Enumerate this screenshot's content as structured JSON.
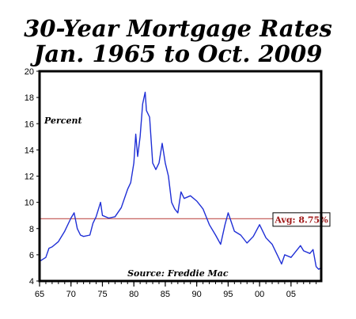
{
  "chart_data": {
    "type": "line",
    "title_line1": "30-Year Mortgage Rates",
    "title_line2": "Jan. 1965 to Oct. 2009",
    "ylabel": "Percent",
    "source": "Source: Freddie Mac",
    "avg_label": "Avg: 8.75%",
    "avg_value": 8.75,
    "ylim": [
      4,
      20
    ],
    "xlim": [
      1965,
      2009.8
    ],
    "y_ticks": [
      4,
      6,
      8,
      10,
      12,
      14,
      16,
      18,
      20
    ],
    "x_ticks": [
      {
        "value": 1965,
        "label": "65"
      },
      {
        "value": 1970,
        "label": "70"
      },
      {
        "value": 1975,
        "label": "75"
      },
      {
        "value": 1980,
        "label": "80"
      },
      {
        "value": 1985,
        "label": "85"
      },
      {
        "value": 1990,
        "label": "90"
      },
      {
        "value": 1995,
        "label": "95"
      },
      {
        "value": 2000,
        "label": "00"
      },
      {
        "value": 2005,
        "label": "05"
      }
    ],
    "grid": false,
    "colors": {
      "line": "#1f2fd6",
      "avg": "#c0504d",
      "avg_text": "#a01818"
    },
    "series": [
      {
        "x": [
          1965.0,
          1966.0,
          1966.5,
          1967.0,
          1968.0,
          1969.0,
          1970.0,
          1970.5,
          1971.0,
          1971.5,
          1972.0,
          1973.0,
          1973.5,
          1974.0,
          1974.7,
          1975.0,
          1976.0,
          1977.0,
          1978.0,
          1979.0,
          1979.5,
          1980.0,
          1980.3,
          1980.6,
          1981.0,
          1981.4,
          1981.8,
          1982.0,
          1982.5,
          1983.0,
          1983.5,
          1984.0,
          1984.5,
          1985.0,
          1985.5,
          1986.0,
          1986.5,
          1987.0,
          1987.5,
          1988.0,
          1989.0,
          1990.0,
          1991.0,
          1992.0,
          1993.0,
          1993.8,
          1994.5,
          1995.0,
          1996.0,
          1997.0,
          1998.0,
          1999.0,
          2000.0,
          2001.0,
          2002.0,
          2003.0,
          2003.5,
          2004.0,
          2005.0,
          2006.0,
          2006.5,
          2007.0,
          2008.0,
          2008.5,
          2009.0,
          2009.4,
          2009.8
        ],
        "y": [
          5.5,
          5.8,
          6.5,
          6.6,
          7.0,
          7.8,
          8.8,
          9.2,
          8.0,
          7.5,
          7.4,
          7.5,
          8.4,
          8.9,
          10.0,
          9.0,
          8.8,
          8.9,
          9.6,
          11.0,
          11.5,
          13.0,
          15.2,
          13.5,
          15.0,
          17.5,
          18.4,
          17.0,
          16.5,
          13.0,
          12.5,
          13.0,
          14.5,
          13.0,
          12.0,
          10.0,
          9.5,
          9.2,
          10.8,
          10.3,
          10.5,
          10.1,
          9.5,
          8.3,
          7.5,
          6.8,
          8.3,
          9.2,
          7.8,
          7.5,
          6.9,
          7.4,
          8.3,
          7.3,
          6.8,
          5.8,
          5.3,
          6.0,
          5.8,
          6.4,
          6.7,
          6.3,
          6.1,
          6.4,
          5.1,
          4.9,
          5.0
        ]
      }
    ]
  }
}
